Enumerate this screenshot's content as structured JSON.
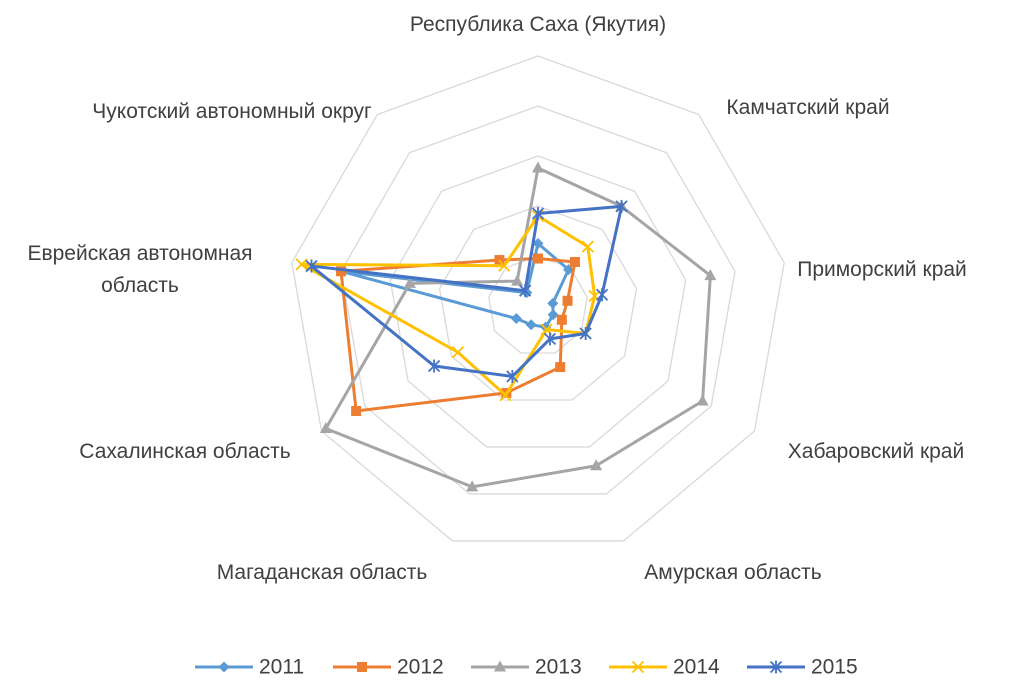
{
  "chart_data": {
    "type": "radar",
    "categories": [
      "Республика Саха (Якутия)",
      "Камчатский край",
      "Приморский край",
      "Хабаровский край",
      "Амурская область",
      "Магаданская область",
      "Сахалинская область",
      "Еврейская автономная область",
      "Чукотский автономный округ"
    ],
    "rlim": [
      0,
      5
    ],
    "rticks": [
      1,
      2,
      3,
      4,
      5
    ],
    "grid": true,
    "legend": "bottom",
    "series": [
      {
        "name": "2011",
        "color": "#5b9bd5",
        "marker": "diamond",
        "values": [
          1.25,
          0.95,
          0.3,
          0.35,
          0.45,
          0.4,
          0.5,
          4.0,
          0.35
        ]
      },
      {
        "name": "2012",
        "color": "#ed7d31",
        "marker": "square",
        "values": [
          0.95,
          1.15,
          0.6,
          0.55,
          1.3,
          1.85,
          4.2,
          4.0,
          1.2
        ]
      },
      {
        "name": "2013",
        "color": "#a5a5a5",
        "marker": "triangle",
        "values": [
          2.76,
          2.6,
          3.5,
          3.8,
          3.4,
          3.85,
          4.9,
          2.6,
          0.65
        ]
      },
      {
        "name": "2014",
        "color": "#ffc000",
        "marker": "x",
        "values": [
          1.8,
          1.55,
          1.15,
          1.1,
          0.5,
          1.9,
          1.85,
          4.8,
          1.05
        ]
      },
      {
        "name": "2015",
        "color": "#4472c4",
        "marker": "star",
        "values": [
          1.85,
          2.6,
          1.3,
          1.1,
          0.7,
          1.5,
          2.4,
          4.6,
          0.4
        ]
      }
    ]
  }
}
